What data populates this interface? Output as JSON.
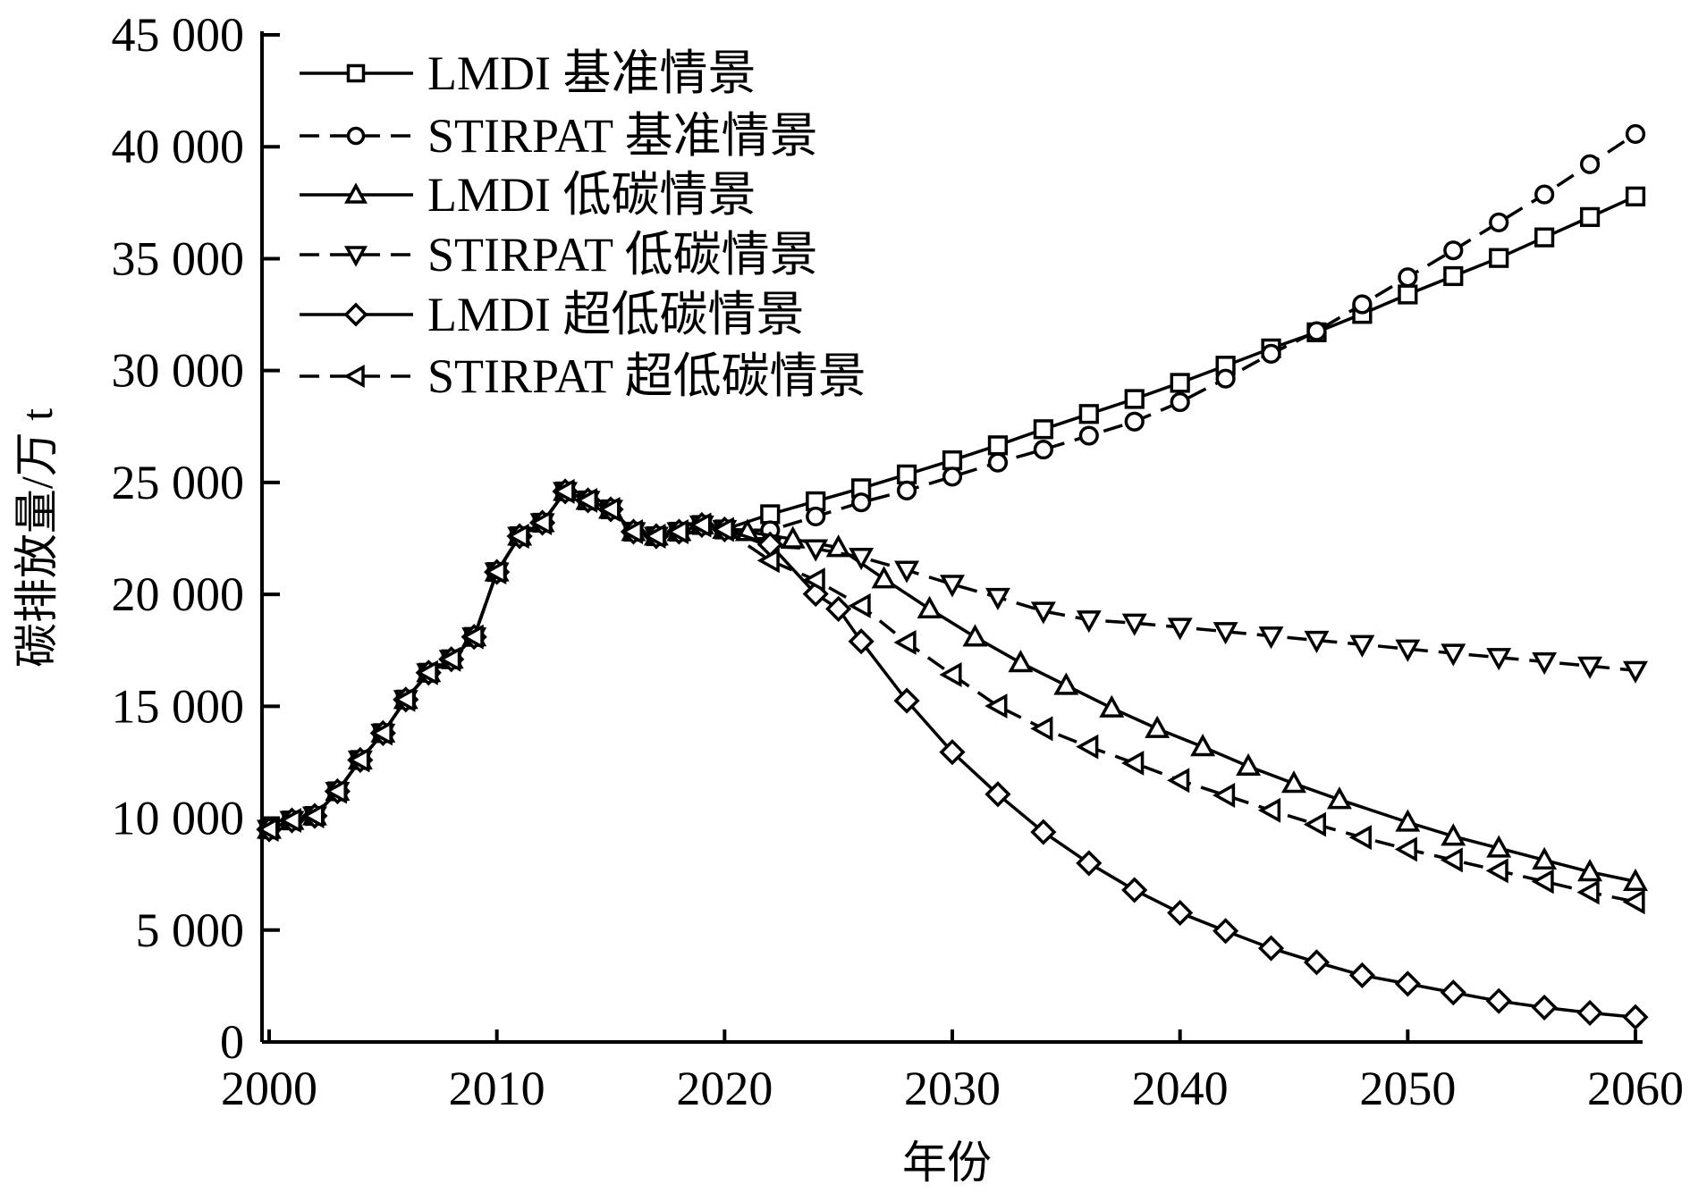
{
  "chart_data": {
    "type": "line",
    "title": "",
    "xlabel": "年份",
    "ylabel": "碳排放量/万 t",
    "xlim": [
      2000,
      2060
    ],
    "ylim": [
      0,
      45000
    ],
    "xticks": [
      2000,
      2010,
      2020,
      2030,
      2040,
      2050,
      2060
    ],
    "xtick_labels": [
      "2000",
      "2010",
      "2020",
      "2030",
      "2040",
      "2050",
      "2060"
    ],
    "yticks": [
      0,
      5000,
      10000,
      15000,
      20000,
      25000,
      30000,
      35000,
      40000,
      45000
    ],
    "ytick_labels": [
      "0",
      "5 000",
      "10 000",
      "15 000",
      "20 000",
      "25 000",
      "30 000",
      "35 000",
      "40 000",
      "45 000"
    ],
    "grid": false,
    "legend_position": "top-left",
    "historical": {
      "x": [
        2000,
        2001,
        2002,
        2003,
        2004,
        2005,
        2006,
        2007,
        2008,
        2009,
        2010,
        2011,
        2012,
        2013,
        2014,
        2015,
        2016,
        2017,
        2018,
        2019,
        2020
      ],
      "y": [
        9500,
        9900,
        10100,
        11200,
        12600,
        13800,
        15300,
        16500,
        17100,
        18100,
        21000,
        22600,
        23200,
        24600,
        24200,
        23800,
        22800,
        22600,
        22800,
        23100,
        22900
      ]
    },
    "series": [
      {
        "name": "LMDI 基准情景",
        "marker": "square",
        "line": "solid",
        "color": "#000000",
        "x": [
          2022,
          2024,
          2026,
          2028,
          2030,
          2032,
          2034,
          2036,
          2038,
          2040,
          2042,
          2044,
          2046,
          2048,
          2050,
          2052,
          2054,
          2056,
          2058,
          2060
        ],
        "y": [
          23580,
          24160,
          24740,
          25360,
          25990,
          26660,
          27380,
          28060,
          28730,
          29450,
          30220,
          30990,
          31710,
          32530,
          33400,
          34220,
          35030,
          35950,
          36860,
          37780
        ]
      },
      {
        "name": "STIRPAT 基准情景",
        "marker": "circle",
        "line": "dashed",
        "color": "#000000",
        "x": [
          2022,
          2024,
          2026,
          2028,
          2030,
          2032,
          2034,
          2036,
          2038,
          2040,
          2042,
          2044,
          2046,
          2048,
          2050,
          2052,
          2054,
          2056,
          2058,
          2060
        ],
        "y": [
          22860,
          23480,
          24110,
          24640,
          25260,
          25890,
          26470,
          27090,
          27720,
          28590,
          29640,
          30750,
          31760,
          32960,
          34170,
          35370,
          36620,
          37870,
          39220,
          40570
        ]
      },
      {
        "name": "LMDI 低碳情景",
        "marker": "triangle-up",
        "line": "solid",
        "color": "#000000",
        "x": [
          2021,
          2023,
          2025,
          2027,
          2029,
          2031,
          2033,
          2035,
          2037,
          2039,
          2041,
          2043,
          2045,
          2047,
          2050,
          2052,
          2054,
          2056,
          2058,
          2060
        ],
        "y": [
          22800,
          22470,
          22090,
          20690,
          19350,
          18090,
          16940,
          15930,
          14920,
          14000,
          13190,
          12320,
          11550,
          10830,
          9820,
          9190,
          8660,
          8130,
          7600,
          7170
        ]
      },
      {
        "name": "STIRPAT 低碳情景",
        "marker": "triangle-down",
        "line": "dashed",
        "color": "#000000",
        "x": [
          2022,
          2024,
          2026,
          2028,
          2030,
          2032,
          2034,
          2036,
          2038,
          2040,
          2042,
          2044,
          2046,
          2048,
          2050,
          2052,
          2054,
          2056,
          2058,
          2060
        ],
        "y": [
          22140,
          22040,
          21660,
          21080,
          20450,
          19870,
          19250,
          18860,
          18720,
          18530,
          18340,
          18140,
          17950,
          17760,
          17560,
          17370,
          17180,
          16990,
          16800,
          16600
        ]
      },
      {
        "name": "LMDI 超低碳情景",
        "marker": "diamond",
        "line": "solid",
        "color": "#000000",
        "x": [
          2022,
          2024,
          2025,
          2026,
          2028,
          2030,
          2032,
          2034,
          2036,
          2038,
          2040,
          2042,
          2044,
          2046,
          2048,
          2050,
          2052,
          2054,
          2056,
          2058,
          2060
        ],
        "y": [
          22230,
          20020,
          19350,
          17900,
          15250,
          12950,
          11070,
          9380,
          7990,
          6790,
          5770,
          4960,
          4190,
          3560,
          2980,
          2600,
          2210,
          1830,
          1540,
          1300,
          1110
        ]
      },
      {
        "name": "STIRPAT 超低碳情景",
        "marker": "triangle-left",
        "line": "dashed",
        "color": "#000000",
        "x": [
          2022,
          2024,
          2026,
          2028,
          2030,
          2032,
          2034,
          2036,
          2038,
          2040,
          2042,
          2044,
          2046,
          2048,
          2050,
          2052,
          2054,
          2056,
          2058,
          2060
        ],
        "y": [
          21510,
          20640,
          19490,
          17850,
          16410,
          15010,
          14000,
          13190,
          12460,
          11690,
          11020,
          10350,
          9720,
          9140,
          8610,
          8130,
          7650,
          7170,
          6690,
          6260
        ]
      }
    ]
  }
}
